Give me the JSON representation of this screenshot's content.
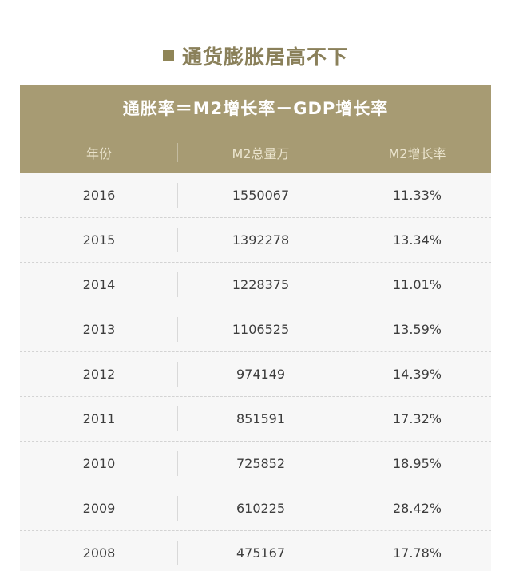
{
  "heading": {
    "icon": "square-bullet-icon",
    "text": "通货膨胀居高不下"
  },
  "table": {
    "title": "通胀率＝M2增长率－GDP增长率",
    "columns": [
      "年份",
      "M2总量万",
      "M2增长率"
    ],
    "rows": [
      {
        "year": "2016",
        "m2_total": "1550067",
        "m2_growth": "11.33%"
      },
      {
        "year": "2015",
        "m2_total": "1392278",
        "m2_growth": "13.34%"
      },
      {
        "year": "2014",
        "m2_total": "1228375",
        "m2_growth": "11.01%"
      },
      {
        "year": "2013",
        "m2_total": "1106525",
        "m2_growth": "13.59%"
      },
      {
        "year": "2012",
        "m2_total": "974149",
        "m2_growth": "14.39%"
      },
      {
        "year": "2011",
        "m2_total": "851591",
        "m2_growth": "17.32%"
      },
      {
        "year": "2010",
        "m2_total": "725852",
        "m2_growth": "18.95%"
      },
      {
        "year": "2009",
        "m2_total": "610225",
        "m2_growth": "28.42%"
      },
      {
        "year": "2008",
        "m2_total": "475167",
        "m2_growth": "17.78%"
      }
    ]
  },
  "colors": {
    "accent": "#a79b73",
    "heading_text": "#8a805a",
    "row_background": "#f7f7f7"
  }
}
